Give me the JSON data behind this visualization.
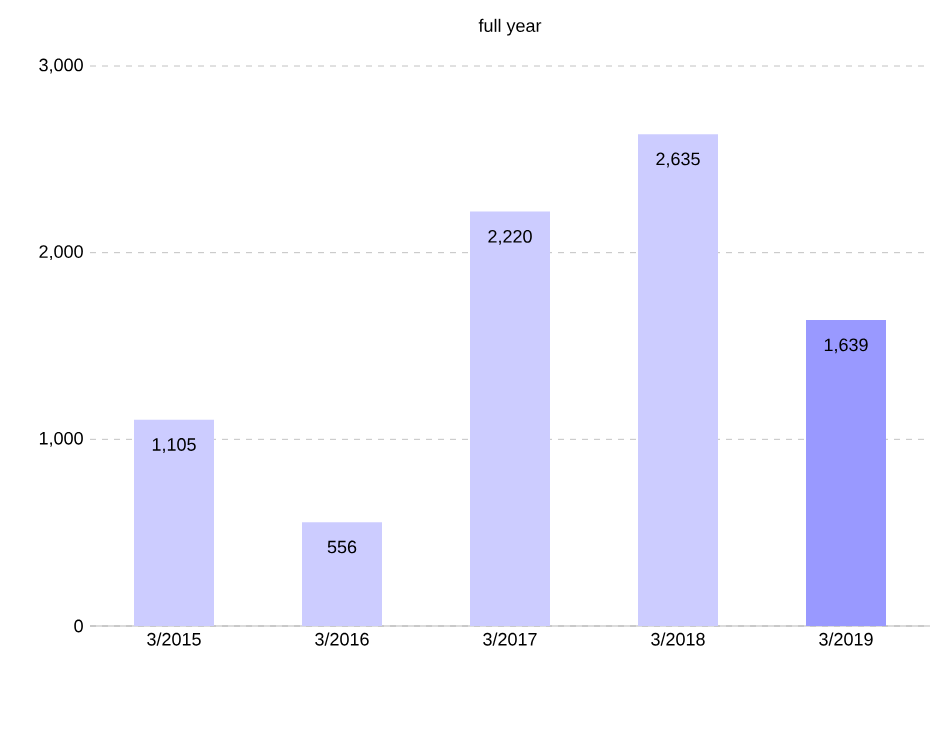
{
  "chart_data": {
    "type": "bar",
    "title": "full year",
    "categories": [
      "3/2015",
      "3/2016",
      "3/2017",
      "3/2018",
      "3/2019"
    ],
    "values": [
      1105,
      556,
      2220,
      2635,
      1639
    ],
    "value_labels": [
      "1,105",
      "556",
      "2,220",
      "2,635",
      "1,639"
    ],
    "colors": [
      "#ccccff",
      "#ccccff",
      "#ccccff",
      "#ccccff",
      "#9999ff"
    ],
    "ylim": [
      0,
      3000
    ],
    "yticks": [
      {
        "value": 0,
        "label": "0"
      },
      {
        "value": 1000,
        "label": "1,000"
      },
      {
        "value": 2000,
        "label": "2,000"
      },
      {
        "value": 3000,
        "label": "3,000"
      }
    ],
    "grid": "y"
  }
}
